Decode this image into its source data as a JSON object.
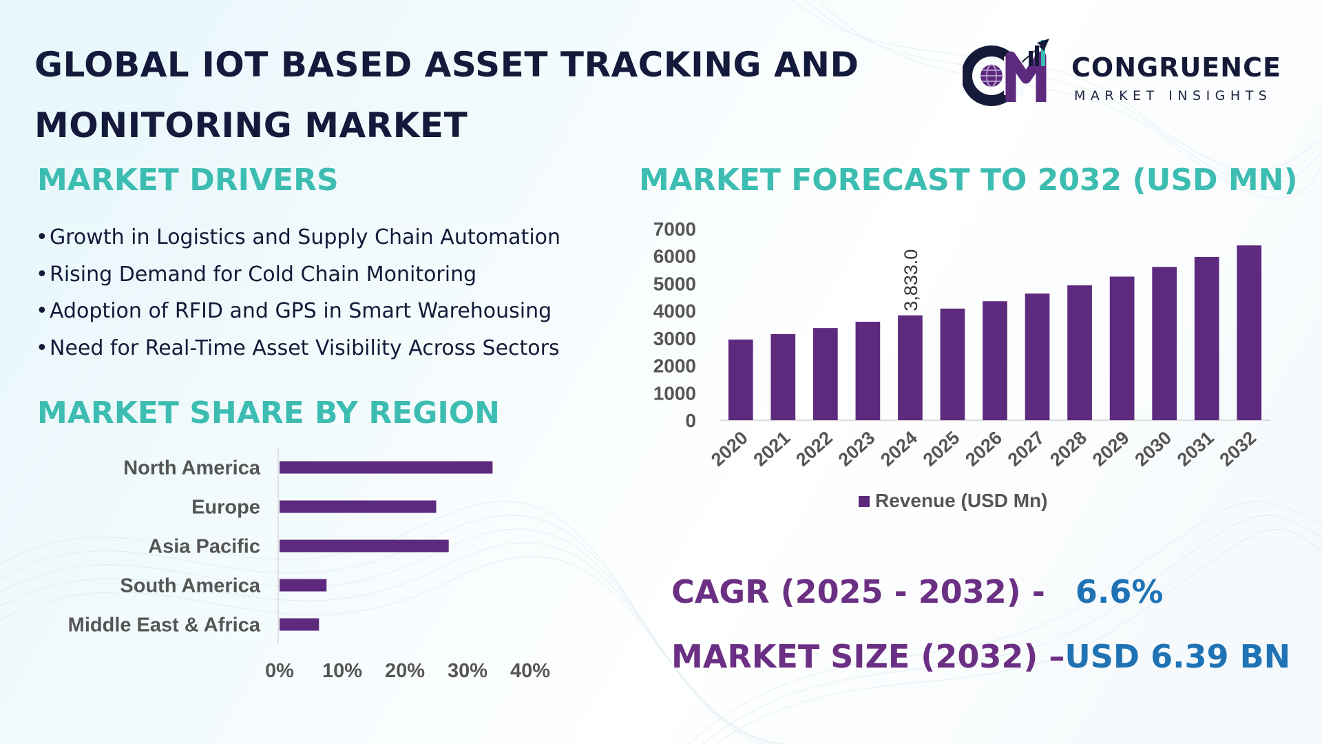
{
  "title": "GLOBAL IOT BASED ASSET TRACKING AND MONITORING MARKET",
  "logo": {
    "name": "CONGRUENCE",
    "subtitle": "MARKET INSIGHTS"
  },
  "colors": {
    "bar": "#5e2a7e",
    "heading": "#3dbdb1",
    "stat_label": "#6b2f83",
    "stat_value": "#1f73b5",
    "title": "#131a3b"
  },
  "drivers": {
    "heading": "MARKET DRIVERS",
    "items": [
      "Growth in Logistics and Supply Chain Automation",
      "Rising Demand for Cold Chain Monitoring",
      "Adoption of RFID and GPS in Smart Warehousing",
      "Need for Real-Time Asset Visibility Across Sectors"
    ]
  },
  "region": {
    "heading": "MARKET SHARE BY REGION"
  },
  "forecast": {
    "heading": "MARKET FORECAST TO 2032 (USD MN)"
  },
  "stats": {
    "cagr_label": "CAGR (2025 - 2032) -",
    "cagr_value": "6.6%",
    "size_label": "MARKET SIZE (2032) –",
    "size_value": "USD 6.39 BN"
  },
  "chart_data": [
    {
      "type": "bar",
      "orientation": "vertical",
      "title": "MARKET FORECAST TO 2032 (USD MN)",
      "categories": [
        "2020",
        "2021",
        "2022",
        "2023",
        "2024",
        "2025",
        "2026",
        "2027",
        "2028",
        "2029",
        "2030",
        "2031",
        "2032"
      ],
      "series": [
        {
          "name": "Revenue (USD Mn)",
          "values": [
            2950,
            3150,
            3370,
            3600,
            3833,
            4080,
            4350,
            4630,
            4930,
            5250,
            5600,
            5970,
            6390
          ]
        }
      ],
      "ylim": [
        0,
        7000
      ],
      "yticks": [
        0,
        1000,
        2000,
        3000,
        4000,
        5000,
        6000,
        7000
      ],
      "annotations": [
        {
          "category": "2024",
          "text": "3,833.0"
        }
      ],
      "legend": "bottom"
    },
    {
      "type": "bar",
      "orientation": "horizontal",
      "title": "MARKET SHARE BY REGION",
      "categories": [
        "North America",
        "Europe",
        "Asia Pacific",
        "South America",
        "Middle East & Africa"
      ],
      "values": [
        34,
        25,
        27,
        7.5,
        6.3
      ],
      "xlim": [
        0,
        40
      ],
      "xticks": [
        "0%",
        "10%",
        "20%",
        "30%",
        "40%"
      ]
    }
  ]
}
